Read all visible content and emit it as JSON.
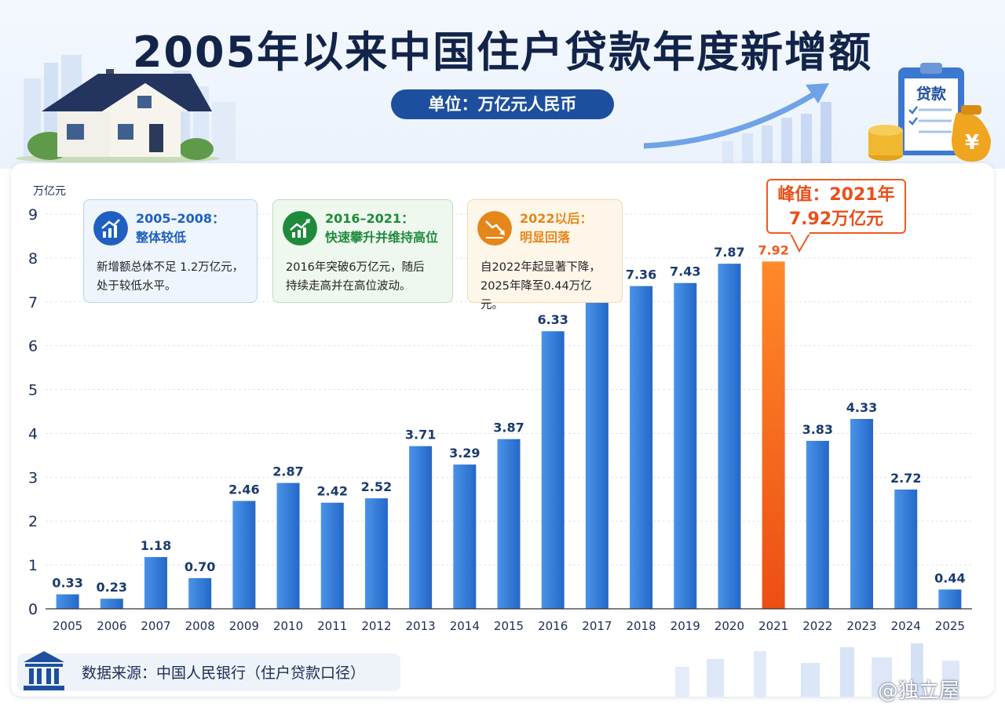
{
  "title": "2005年以来中国住户贷款年度新增额",
  "unit_label": "单位：万亿元人民币",
  "loan_badge": "贷款",
  "currency_symbol": "¥",
  "info_boxes": [
    {
      "title_line1": "2005–2008：",
      "title_line2": "整体较低",
      "text_line1": "新增额总体不足 1.2万亿元，",
      "text_line2": "处于较低水平。",
      "color": "#1f5fc1"
    },
    {
      "title_line1": "2016–2021：",
      "title_line2": "快速攀升并维持高位",
      "text_line1": "2016年突破6万亿元，随后",
      "text_line2": "持续走高并在高位波动。",
      "color": "#1f8a3b"
    },
    {
      "title_line1": "2022以后：",
      "title_line2": "明显回落",
      "text_line1": "自2022年起显著下降，",
      "text_line2": "2025年降至0.44万亿元。",
      "color": "#e5861a"
    }
  ],
  "peak_callout": {
    "line1": "峰值：2021年",
    "line2": "7.92万亿元"
  },
  "source": "数据来源：中国人民银行（住户贷款口径）",
  "watermark": "@独立屋",
  "colors": {
    "bar": "#2f7ad6",
    "bar_highlight": "#f26a1b",
    "title": "#13244a",
    "label": "#1a3a6e"
  },
  "chart_data": {
    "type": "bar",
    "title": "2005年以来中国住户贷款年度新增额",
    "ylabel": "万亿元",
    "ylim": [
      0,
      9
    ],
    "yticks": [
      0,
      1,
      2,
      3,
      4,
      5,
      6,
      7,
      8,
      9
    ],
    "grid": true,
    "categories": [
      "2005",
      "2006",
      "2007",
      "2008",
      "2009",
      "2010",
      "2011",
      "2012",
      "2013",
      "2014",
      "2015",
      "2016",
      "2017",
      "2018",
      "2019",
      "2020",
      "2021",
      "2022",
      "2023",
      "2024",
      "2025"
    ],
    "values": [
      0.33,
      0.23,
      1.18,
      0.7,
      2.46,
      2.87,
      2.42,
      2.52,
      3.71,
      3.29,
      3.87,
      6.33,
      7.13,
      7.36,
      7.43,
      7.87,
      7.92,
      3.83,
      4.33,
      2.72,
      0.44
    ],
    "value_labels": [
      "0.33",
      "0.23",
      "1.18",
      "0.70",
      "2.46",
      "2.87",
      "2.42",
      "2.52",
      "3.71",
      "3.29",
      "3.87",
      "6.33",
      "7.13",
      "7.36",
      "7.43",
      "7.87",
      "7.92",
      "3.83",
      "4.33",
      "2.72",
      "0.44"
    ],
    "highlight_category": "2021"
  }
}
